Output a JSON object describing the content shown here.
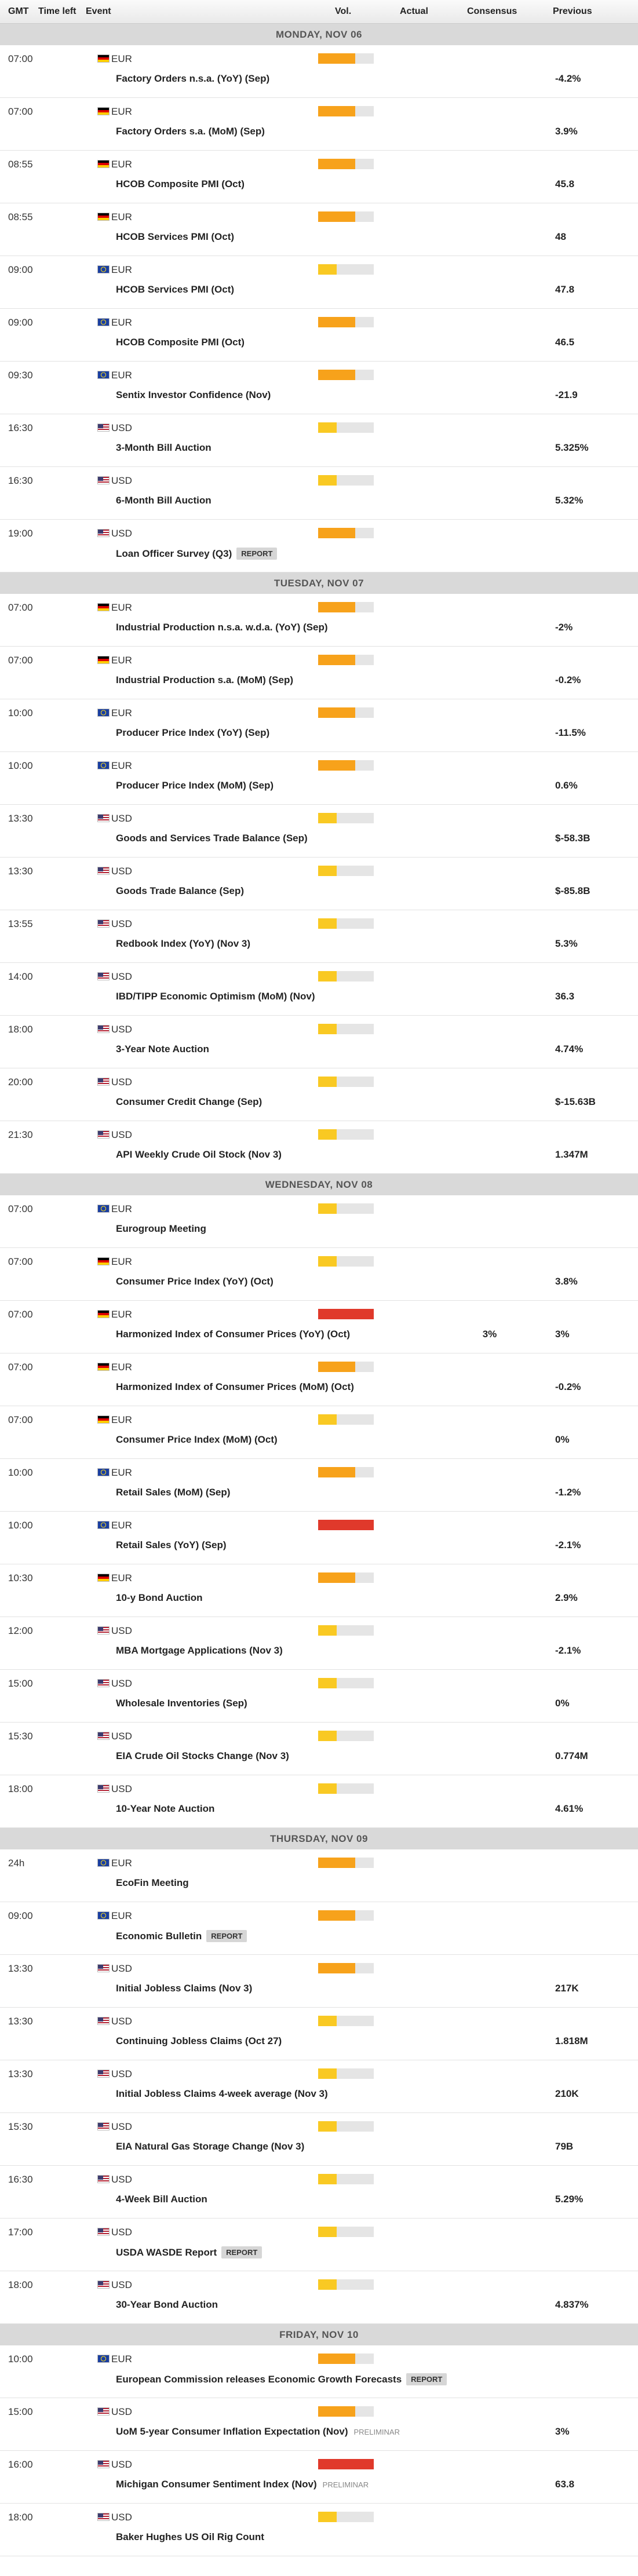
{
  "header": {
    "columns": [
      "GMT",
      "Time left",
      "Event",
      "Vol.",
      "Actual",
      "Consensus",
      "Previous"
    ]
  },
  "vol_levels": [
    "#f9c923",
    "#f7a21b",
    "#e0392b"
  ],
  "days": [
    {
      "label": "MONDAY, NOV 06",
      "events": [
        {
          "time": "07:00",
          "flag": "de",
          "currency": "EUR",
          "event": "Factory Orders n.s.a. (YoY) (Sep)",
          "vol": "#f7a21b",
          "previous": "-4.2%"
        },
        {
          "time": "07:00",
          "flag": "de",
          "currency": "EUR",
          "event": "Factory Orders s.a. (MoM) (Sep)",
          "vol": "#f7a21b",
          "previous": "3.9%"
        },
        {
          "time": "08:55",
          "flag": "de",
          "currency": "EUR",
          "event": "HCOB Composite PMI (Oct)",
          "vol": "#f7a21b",
          "previous": "45.8"
        },
        {
          "time": "08:55",
          "flag": "de",
          "currency": "EUR",
          "event": "HCOB Services PMI (Oct)",
          "vol": "#f7a21b",
          "previous": "48"
        },
        {
          "time": "09:00",
          "flag": "eu",
          "currency": "EUR",
          "event": "HCOB Services PMI (Oct)",
          "vol": "#f9c923",
          "previous": "47.8"
        },
        {
          "time": "09:00",
          "flag": "eu",
          "currency": "EUR",
          "event": "HCOB Composite PMI (Oct)",
          "vol": "#f7a21b",
          "previous": "46.5"
        },
        {
          "time": "09:30",
          "flag": "eu",
          "currency": "EUR",
          "event": "Sentix Investor Confidence (Nov)",
          "vol": "#f7a21b",
          "previous": "-21.9"
        },
        {
          "time": "16:30",
          "flag": "us",
          "currency": "USD",
          "event": "3-Month Bill Auction",
          "vol": "#f9c923",
          "previous": "5.325%"
        },
        {
          "time": "16:30",
          "flag": "us",
          "currency": "USD",
          "event": "6-Month Bill Auction",
          "vol": "#f9c923",
          "previous": "5.32%"
        },
        {
          "time": "19:00",
          "flag": "us",
          "currency": "USD",
          "event": "Loan Officer Survey (Q3)",
          "tag": "REPORT",
          "vol": "#f7a21b"
        }
      ]
    },
    {
      "label": "TUESDAY, NOV 07",
      "events": [
        {
          "time": "07:00",
          "flag": "de",
          "currency": "EUR",
          "event": "Industrial Production n.s.a. w.d.a. (YoY) (Sep)",
          "vol": "#f7a21b",
          "previous": "-2%"
        },
        {
          "time": "07:00",
          "flag": "de",
          "currency": "EUR",
          "event": "Industrial Production s.a. (MoM) (Sep)",
          "vol": "#f7a21b",
          "previous": "-0.2%"
        },
        {
          "time": "10:00",
          "flag": "eu",
          "currency": "EUR",
          "event": "Producer Price Index (YoY) (Sep)",
          "vol": "#f7a21b",
          "previous": "-11.5%"
        },
        {
          "time": "10:00",
          "flag": "eu",
          "currency": "EUR",
          "event": "Producer Price Index (MoM) (Sep)",
          "vol": "#f7a21b",
          "previous": "0.6%"
        },
        {
          "time": "13:30",
          "flag": "us",
          "currency": "USD",
          "event": "Goods and Services Trade Balance (Sep)",
          "vol": "#f9c923",
          "previous": "$-58.3B"
        },
        {
          "time": "13:30",
          "flag": "us",
          "currency": "USD",
          "event": "Goods Trade Balance (Sep)",
          "vol": "#f9c923",
          "previous": "$-85.8B"
        },
        {
          "time": "13:55",
          "flag": "us",
          "currency": "USD",
          "event": "Redbook Index (YoY) (Nov 3)",
          "vol": "#f9c923",
          "previous": "5.3%"
        },
        {
          "time": "14:00",
          "flag": "us",
          "currency": "USD",
          "event": "IBD/TIPP Economic Optimism (MoM) (Nov)",
          "vol": "#f9c923",
          "previous": "36.3"
        },
        {
          "time": "18:00",
          "flag": "us",
          "currency": "USD",
          "event": "3-Year Note Auction",
          "vol": "#f9c923",
          "previous": "4.74%"
        },
        {
          "time": "20:00",
          "flag": "us",
          "currency": "USD",
          "event": "Consumer Credit Change (Sep)",
          "vol": "#f9c923",
          "previous": "$-15.63B"
        },
        {
          "time": "21:30",
          "flag": "us",
          "currency": "USD",
          "event": "API Weekly Crude Oil Stock (Nov 3)",
          "vol": "#f9c923",
          "previous": "1.347M"
        }
      ]
    },
    {
      "label": "WEDNESDAY, NOV 08",
      "events": [
        {
          "time": "07:00",
          "flag": "eu",
          "currency": "EUR",
          "event": "Eurogroup Meeting",
          "vol": "#f9c923"
        },
        {
          "time": "07:00",
          "flag": "de",
          "currency": "EUR",
          "event": "Consumer Price Index (YoY) (Oct)",
          "vol": "#f9c923",
          "previous": "3.8%"
        },
        {
          "time": "07:00",
          "flag": "de",
          "currency": "EUR",
          "event": "Harmonized Index of Consumer Prices (YoY) (Oct)",
          "vol": "#e0392b",
          "consensus": "3%",
          "previous": "3%"
        },
        {
          "time": "07:00",
          "flag": "de",
          "currency": "EUR",
          "event": "Harmonized Index of Consumer Prices (MoM) (Oct)",
          "vol": "#f7a21b",
          "previous": "-0.2%"
        },
        {
          "time": "07:00",
          "flag": "de",
          "currency": "EUR",
          "event": "Consumer Price Index (MoM) (Oct)",
          "vol": "#f9c923",
          "previous": "0%"
        },
        {
          "time": "10:00",
          "flag": "eu",
          "currency": "EUR",
          "event": "Retail Sales (MoM) (Sep)",
          "vol": "#f7a21b",
          "previous": "-1.2%"
        },
        {
          "time": "10:00",
          "flag": "eu",
          "currency": "EUR",
          "event": "Retail Sales (YoY) (Sep)",
          "vol": "#e0392b",
          "previous": "-2.1%"
        },
        {
          "time": "10:30",
          "flag": "de",
          "currency": "EUR",
          "event": "10-y Bond Auction",
          "vol": "#f7a21b",
          "previous": "2.9%"
        },
        {
          "time": "12:00",
          "flag": "us",
          "currency": "USD",
          "event": "MBA Mortgage Applications (Nov 3)",
          "vol": "#f9c923",
          "previous": "-2.1%"
        },
        {
          "time": "15:00",
          "flag": "us",
          "currency": "USD",
          "event": "Wholesale Inventories (Sep)",
          "vol": "#f9c923",
          "previous": "0%"
        },
        {
          "time": "15:30",
          "flag": "us",
          "currency": "USD",
          "event": "EIA Crude Oil Stocks Change (Nov 3)",
          "vol": "#f9c923",
          "previous": "0.774M"
        },
        {
          "time": "18:00",
          "flag": "us",
          "currency": "USD",
          "event": "10-Year Note Auction",
          "vol": "#f9c923",
          "previous": "4.61%"
        }
      ]
    },
    {
      "label": "THURSDAY, NOV 09",
      "events": [
        {
          "time": "24h",
          "flag": "eu",
          "currency": "EUR",
          "event": "EcoFin Meeting",
          "vol": "#f7a21b"
        },
        {
          "time": "09:00",
          "flag": "eu",
          "currency": "EUR",
          "event": "Economic Bulletin",
          "tag": "REPORT",
          "vol": "#f7a21b"
        },
        {
          "time": "13:30",
          "flag": "us",
          "currency": "USD",
          "event": "Initial Jobless Claims (Nov 3)",
          "vol": "#f7a21b",
          "previous": "217K"
        },
        {
          "time": "13:30",
          "flag": "us",
          "currency": "USD",
          "event": "Continuing Jobless Claims (Oct 27)",
          "vol": "#f9c923",
          "previous": "1.818M"
        },
        {
          "time": "13:30",
          "flag": "us",
          "currency": "USD",
          "event": "Initial Jobless Claims 4-week average (Nov 3)",
          "vol": "#f9c923",
          "previous": "210K"
        },
        {
          "time": "15:30",
          "flag": "us",
          "currency": "USD",
          "event": "EIA Natural Gas Storage Change (Nov 3)",
          "vol": "#f9c923",
          "previous": "79B"
        },
        {
          "time": "16:30",
          "flag": "us",
          "currency": "USD",
          "event": "4-Week Bill Auction",
          "vol": "#f9c923",
          "previous": "5.29%"
        },
        {
          "time": "17:00",
          "flag": "us",
          "currency": "USD",
          "event": "USDA WASDE Report",
          "tag": "REPORT",
          "vol": "#f9c923"
        },
        {
          "time": "18:00",
          "flag": "us",
          "currency": "USD",
          "event": "30-Year Bond Auction",
          "vol": "#f9c923",
          "previous": "4.837%"
        }
      ]
    },
    {
      "label": "FRIDAY, NOV 10",
      "events": [
        {
          "time": "10:00",
          "flag": "eu",
          "currency": "EUR",
          "event": "European Commission releases Economic Growth Forecasts",
          "tag": "REPORT",
          "vol": "#f7a21b"
        },
        {
          "time": "15:00",
          "flag": "us",
          "currency": "USD",
          "event": "UoM 5-year Consumer Inflation Expectation (Nov)",
          "note": "PRELIMINAR",
          "vol": "#f7a21b",
          "previous": "3%"
        },
        {
          "time": "16:00",
          "flag": "us",
          "currency": "USD",
          "event": "Michigan Consumer Sentiment Index (Nov)",
          "note": "PRELIMINAR",
          "vol": "#e0392b",
          "previous": "63.8"
        },
        {
          "time": "18:00",
          "flag": "us",
          "currency": "USD",
          "event": "Baker Hughes US Oil Rig Count",
          "vol": "#f9c923"
        }
      ]
    }
  ]
}
